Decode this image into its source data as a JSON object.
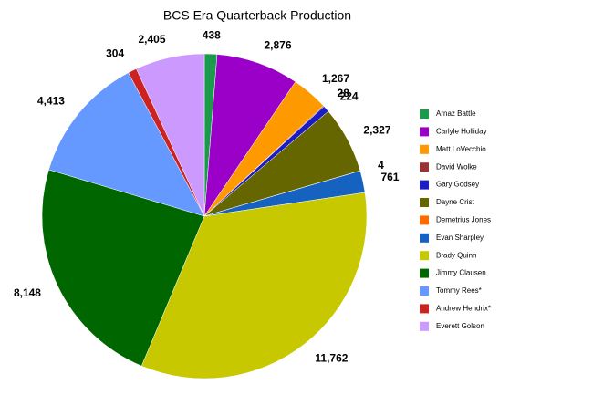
{
  "chart_data": {
    "type": "pie",
    "title": "BCS Era Quarterback Production",
    "categories": [
      "Arnaz Battle",
      "Carlyle Holliday",
      "Matt LoVecchio",
      "David Wolke",
      "Gary Godsey",
      "Dayne Crist",
      "Demetrius Jones",
      "Evan Sharpley",
      "Brady Quinn",
      "Jimmy Clausen",
      "Tommy Rees*",
      "Andrew Hendrix*",
      "Everett Golson"
    ],
    "values": [
      438,
      2876,
      1267,
      28,
      224,
      2327,
      4,
      761,
      11762,
      8148,
      4413,
      304,
      2405
    ],
    "value_labels": [
      "438",
      "2,876",
      "1,267",
      "28",
      "224",
      "2,327",
      "4",
      "761",
      "11,762",
      "8,148",
      "4,413",
      "304",
      "2,405"
    ],
    "colors": [
      "#1a9a4a",
      "#9a00c8",
      "#ff9900",
      "#993333",
      "#1c1cc4",
      "#666600",
      "#ff6a00",
      "#1562c0",
      "#c8c800",
      "#006600",
      "#6699ff",
      "#cc2222",
      "#cc99ff"
    ],
    "legend": "right"
  }
}
